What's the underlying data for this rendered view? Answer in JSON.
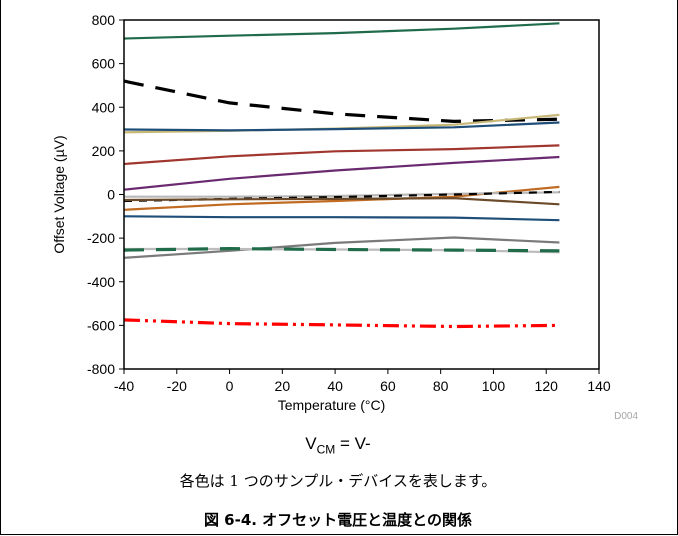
{
  "chart_data": {
    "type": "line",
    "xlabel": "Temperature (°C)",
    "ylabel": "Offset Voltage (µV)",
    "xlim": [
      -40,
      140
    ],
    "ylim": [
      -800,
      800
    ],
    "x_ticks": [
      -40,
      -20,
      0,
      20,
      40,
      60,
      80,
      100,
      120,
      140
    ],
    "y_ticks": [
      -800,
      -600,
      -400,
      -200,
      0,
      200,
      400,
      600,
      800
    ],
    "grid": false,
    "legend": "none",
    "x": [
      -40,
      0,
      40,
      85,
      125
    ],
    "series": [
      {
        "color": "#1f6b4a",
        "dash": "solid",
        "values": [
          715,
          728,
          740,
          760,
          785
        ]
      },
      {
        "color": "#000000",
        "dash": "longdash",
        "values": [
          520,
          420,
          370,
          335,
          345
        ]
      },
      {
        "color": "#c8b878",
        "dash": "solid",
        "values": [
          285,
          292,
          302,
          320,
          365
        ]
      },
      {
        "color": "#1f4e78",
        "dash": "solid",
        "values": [
          298,
          294,
          300,
          308,
          330
        ]
      },
      {
        "color": "#a0362e",
        "dash": "solid",
        "values": [
          140,
          175,
          198,
          208,
          225
        ]
      },
      {
        "color": "#6a2a70",
        "dash": "solid",
        "values": [
          22,
          72,
          110,
          145,
          172
        ]
      },
      {
        "color": "#c06a22",
        "dash": "solid",
        "values": [
          -70,
          -45,
          -30,
          -10,
          35
        ]
      },
      {
        "color": "#b8b8b8",
        "dash": "solid",
        "values": [
          -10,
          -10,
          -7,
          3,
          10
        ]
      },
      {
        "color": "#000000",
        "dash": "shortdash",
        "values": [
          -30,
          -20,
          -12,
          0,
          12
        ]
      },
      {
        "color": "#6b4a2a",
        "dash": "solid",
        "values": [
          -25,
          -22,
          -20,
          -17,
          -45
        ]
      },
      {
        "color": "#1f4e78",
        "dash": "solid",
        "values": [
          -100,
          -104,
          -104,
          -106,
          -118
        ]
      },
      {
        "color": "#7a7a7a",
        "dash": "solid",
        "values": [
          -290,
          -258,
          -222,
          -197,
          -220
        ]
      },
      {
        "color": "#bcbcbc",
        "dash": "solid",
        "values": [
          -250,
          -250,
          -252,
          -255,
          -265
        ]
      },
      {
        "color": "#1f6b4a",
        "dash": "longdash",
        "values": [
          -255,
          -248,
          -252,
          -255,
          -258
        ]
      },
      {
        "color": "#ff0000",
        "dash": "dashdotdot",
        "values": [
          -575,
          -592,
          -598,
          -605,
          -600
        ]
      }
    ],
    "annotation": "D004"
  },
  "condition": {
    "main": "V",
    "sub": "CM",
    "rest": " = V-"
  },
  "note": "各色は 1 つのサンプル・デバイスを表します。",
  "caption": "図 6-4. オフセット電圧と温度との関係"
}
